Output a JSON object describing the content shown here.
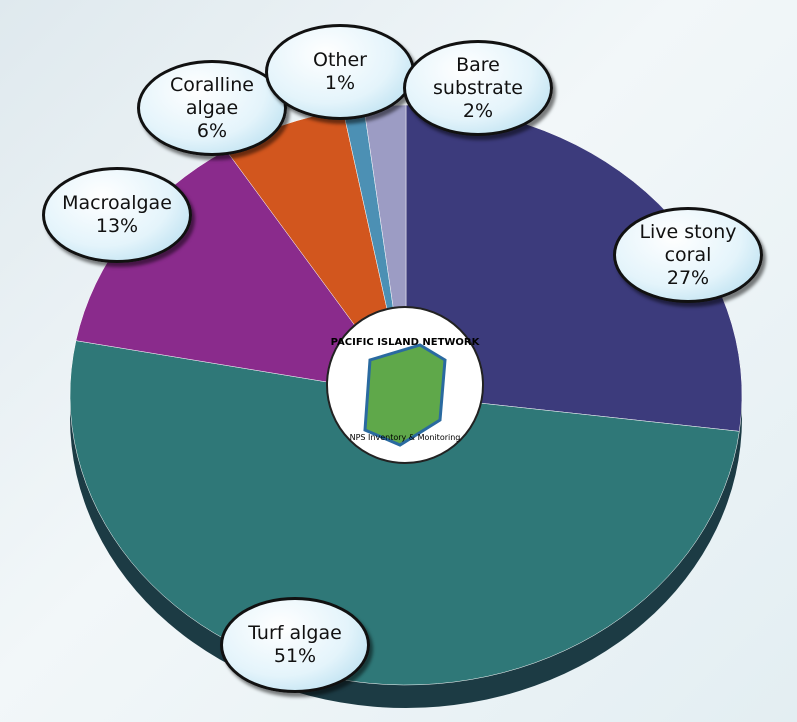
{
  "chart_data": {
    "type": "pie",
    "categories": [
      "Live stony coral",
      "Turf algae",
      "Macroalgae",
      "Coralline algae",
      "Other",
      "Bare substrate"
    ],
    "values": [
      27,
      51,
      13,
      6,
      1,
      2
    ],
    "value_labels": [
      "27%",
      "51%",
      "13%",
      "6%",
      "1%",
      "2%"
    ],
    "colors": [
      "#3c3b7c",
      "#2f7878",
      "#8a2b8c",
      "#d2561e",
      "#4c90b4",
      "#9c9cc4"
    ],
    "logo": {
      "top": "PACIFIC ISLAND NETWORK",
      "bottom": "NPS Inventory & Monitoring"
    }
  }
}
